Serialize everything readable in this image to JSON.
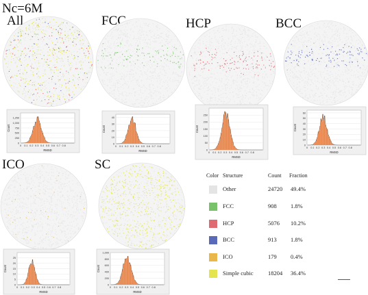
{
  "heading": "Nc=6M",
  "colors": {
    "Other": "#e4e4e4",
    "FCC": "#78c36a",
    "HCP": "#e06a72",
    "BCC": "#5a6ab8",
    "ICO": "#e8b84a",
    "Simple cubic": "#e4e44e",
    "histogram_fill": "#e98a52"
  },
  "panels": [
    {
      "label": "All"
    },
    {
      "label": "FCC"
    },
    {
      "label": "HCP"
    },
    {
      "label": "BCC"
    },
    {
      "label": "ICO"
    },
    {
      "label": "SC"
    }
  ],
  "table": {
    "headers": {
      "color": "Color",
      "structure": "Structure",
      "count": "Count",
      "fraction": "Fraction"
    },
    "rows": [
      {
        "structure": "Other",
        "count": "24720",
        "fraction": "49.4%"
      },
      {
        "structure": "FCC",
        "count": "908",
        "fraction": "1.8%"
      },
      {
        "structure": "HCP",
        "count": "5076",
        "fraction": "10.2%"
      },
      {
        "structure": "BCC",
        "count": "913",
        "fraction": "1.8%"
      },
      {
        "structure": "ICO",
        "count": "179",
        "fraction": "0.4%"
      },
      {
        "structure": "Simple cubic",
        "count": "18204",
        "fraction": "36.4%"
      }
    ]
  },
  "chart_data": [
    {
      "type": "bar",
      "panel": "All",
      "xlabel": "RMSD",
      "ylabel": "Count",
      "xlim": [
        0,
        1
      ],
      "ylim": [
        0,
        1500
      ],
      "x_ticks": [
        "0",
        "0.1",
        "0.2",
        "0.3",
        "0.4",
        "0.5",
        "0.6",
        "0.7",
        "0.8"
      ],
      "y_ticks": [
        "0",
        "250",
        "500",
        "750",
        "1,000",
        "1,250"
      ],
      "peak_x": 0.31,
      "peak_count": 1250,
      "spread": 0.075
    },
    {
      "type": "bar",
      "panel": "FCC",
      "xlabel": "RMSD",
      "ylabel": "Count",
      "xlim": [
        0,
        1
      ],
      "ylim": [
        0,
        45
      ],
      "x_ticks": [
        "0",
        "0.1",
        "0.2",
        "0.3",
        "0.4",
        "0.5",
        "0.6",
        "0.7",
        "0.8"
      ],
      "y_ticks": [
        "0",
        "10",
        "20",
        "30",
        "40"
      ],
      "peak_x": 0.3,
      "peak_count": 40,
      "spread": 0.07
    },
    {
      "type": "bar",
      "panel": "HCP",
      "xlabel": "RMSD",
      "ylabel": "Count",
      "xlim": [
        0,
        1
      ],
      "ylim": [
        0,
        300
      ],
      "x_ticks": [
        "0",
        "0.1",
        "0.2",
        "0.3",
        "0.4",
        "0.5",
        "0.6",
        "0.7",
        "0.8"
      ],
      "y_ticks": [
        "0",
        "50",
        "100",
        "150",
        "200",
        "250"
      ],
      "peak_x": 0.31,
      "peak_count": 260,
      "spread": 0.075
    },
    {
      "type": "bar",
      "panel": "BCC",
      "xlabel": "RMSD",
      "ylabel": "Count",
      "xlim": [
        0,
        1
      ],
      "ylim": [
        0,
        65
      ],
      "x_ticks": [
        "0",
        "0.1",
        "0.2",
        "0.3",
        "0.4",
        "0.5",
        "0.6",
        "0.7",
        "0.8"
      ],
      "y_ticks": [
        "0",
        "10",
        "20",
        "30",
        "40",
        "50",
        "60"
      ],
      "peak_x": 0.3,
      "peak_count": 55,
      "spread": 0.07
    },
    {
      "type": "bar",
      "panel": "ICO",
      "xlabel": "RMSD",
      "ylabel": "Count",
      "xlim": [
        0,
        1
      ],
      "ylim": [
        0,
        30
      ],
      "x_ticks": [
        "0",
        "0.1",
        "0.2",
        "0.3",
        "0.4",
        "0.5",
        "0.6",
        "0.7",
        "0.8"
      ],
      "y_ticks": [
        "0",
        "5",
        "10",
        "15",
        "20",
        "25"
      ],
      "peak_x": 0.28,
      "peak_count": 22,
      "spread": 0.06
    },
    {
      "type": "bar",
      "panel": "SC",
      "xlabel": "RMSD",
      "ylabel": "Count",
      "xlim": [
        0,
        1
      ],
      "ylim": [
        0,
        1000
      ],
      "x_ticks": [
        "0",
        "0.1",
        "0.2",
        "0.3",
        "0.4",
        "0.5",
        "0.6",
        "0.7",
        "0.8"
      ],
      "y_ticks": [
        "0",
        "200",
        "400",
        "600",
        "800",
        "1,000"
      ],
      "peak_x": 0.31,
      "peak_count": 900,
      "spread": 0.075
    }
  ]
}
